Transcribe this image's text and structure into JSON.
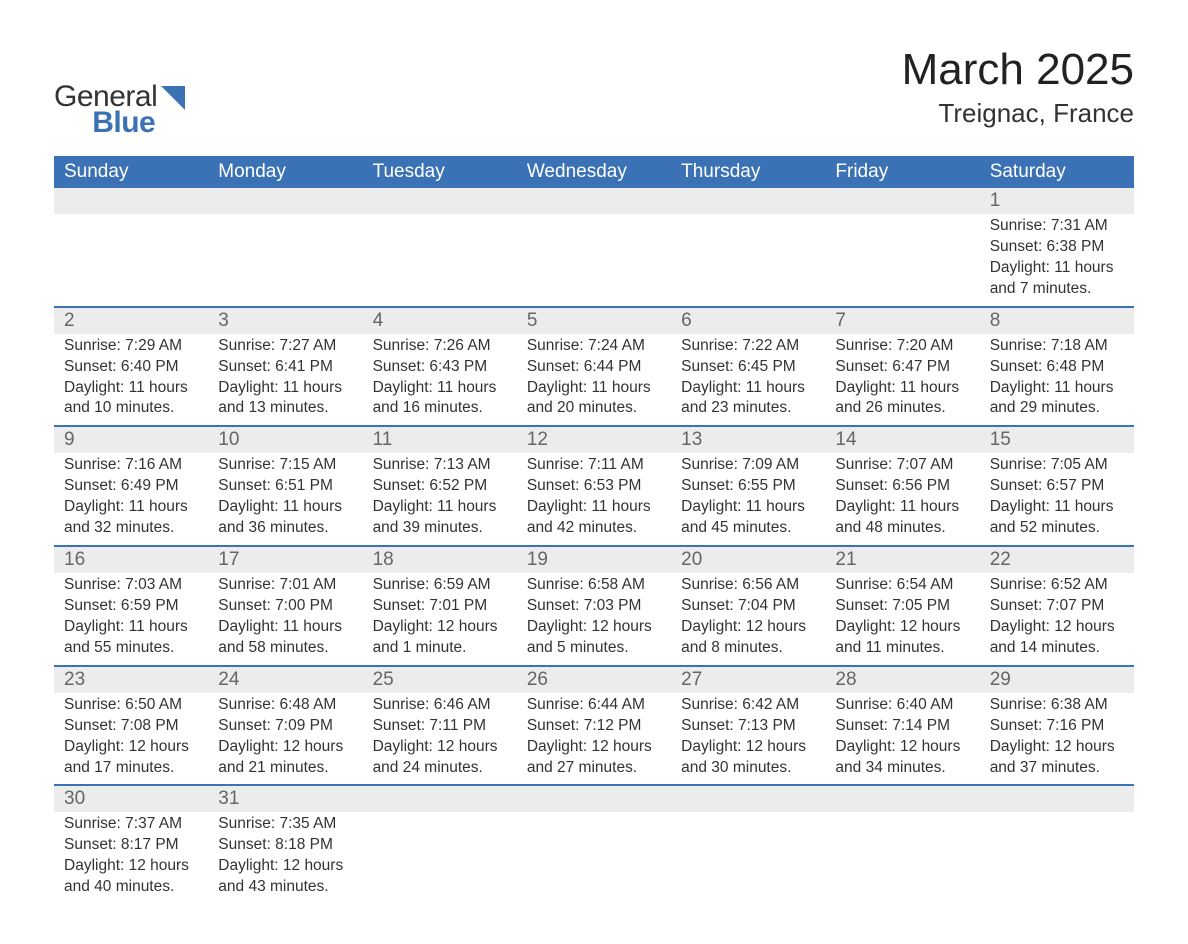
{
  "brand": {
    "word1": "General",
    "word2": "Blue",
    "logo_color": "#3a72b5"
  },
  "title": "March 2025",
  "location": "Treignac, France",
  "colors": {
    "header_bg": "#3a72b5",
    "header_fg": "#ffffff",
    "daynum_bg": "#ececec",
    "row_divider": "#3a72b5",
    "page_bg": "#ffffff",
    "text": "#333333"
  },
  "typography": {
    "title_fontsize": 44,
    "location_fontsize": 26,
    "header_fontsize": 19,
    "daynum_fontsize": 19,
    "body_fontsize": 15.5
  },
  "weekdays": [
    "Sunday",
    "Monday",
    "Tuesday",
    "Wednesday",
    "Thursday",
    "Friday",
    "Saturday"
  ],
  "weeks": [
    [
      null,
      null,
      null,
      null,
      null,
      null,
      {
        "n": "1",
        "sunrise": "7:31 AM",
        "sunset": "6:38 PM",
        "day": "11 hours and 7 minutes."
      }
    ],
    [
      {
        "n": "2",
        "sunrise": "7:29 AM",
        "sunset": "6:40 PM",
        "day": "11 hours and 10 minutes."
      },
      {
        "n": "3",
        "sunrise": "7:27 AM",
        "sunset": "6:41 PM",
        "day": "11 hours and 13 minutes."
      },
      {
        "n": "4",
        "sunrise": "7:26 AM",
        "sunset": "6:43 PM",
        "day": "11 hours and 16 minutes."
      },
      {
        "n": "5",
        "sunrise": "7:24 AM",
        "sunset": "6:44 PM",
        "day": "11 hours and 20 minutes."
      },
      {
        "n": "6",
        "sunrise": "7:22 AM",
        "sunset": "6:45 PM",
        "day": "11 hours and 23 minutes."
      },
      {
        "n": "7",
        "sunrise": "7:20 AM",
        "sunset": "6:47 PM",
        "day": "11 hours and 26 minutes."
      },
      {
        "n": "8",
        "sunrise": "7:18 AM",
        "sunset": "6:48 PM",
        "day": "11 hours and 29 minutes."
      }
    ],
    [
      {
        "n": "9",
        "sunrise": "7:16 AM",
        "sunset": "6:49 PM",
        "day": "11 hours and 32 minutes."
      },
      {
        "n": "10",
        "sunrise": "7:15 AM",
        "sunset": "6:51 PM",
        "day": "11 hours and 36 minutes."
      },
      {
        "n": "11",
        "sunrise": "7:13 AM",
        "sunset": "6:52 PM",
        "day": "11 hours and 39 minutes."
      },
      {
        "n": "12",
        "sunrise": "7:11 AM",
        "sunset": "6:53 PM",
        "day": "11 hours and 42 minutes."
      },
      {
        "n": "13",
        "sunrise": "7:09 AM",
        "sunset": "6:55 PM",
        "day": "11 hours and 45 minutes."
      },
      {
        "n": "14",
        "sunrise": "7:07 AM",
        "sunset": "6:56 PM",
        "day": "11 hours and 48 minutes."
      },
      {
        "n": "15",
        "sunrise": "7:05 AM",
        "sunset": "6:57 PM",
        "day": "11 hours and 52 minutes."
      }
    ],
    [
      {
        "n": "16",
        "sunrise": "7:03 AM",
        "sunset": "6:59 PM",
        "day": "11 hours and 55 minutes."
      },
      {
        "n": "17",
        "sunrise": "7:01 AM",
        "sunset": "7:00 PM",
        "day": "11 hours and 58 minutes."
      },
      {
        "n": "18",
        "sunrise": "6:59 AM",
        "sunset": "7:01 PM",
        "day": "12 hours and 1 minute."
      },
      {
        "n": "19",
        "sunrise": "6:58 AM",
        "sunset": "7:03 PM",
        "day": "12 hours and 5 minutes."
      },
      {
        "n": "20",
        "sunrise": "6:56 AM",
        "sunset": "7:04 PM",
        "day": "12 hours and 8 minutes."
      },
      {
        "n": "21",
        "sunrise": "6:54 AM",
        "sunset": "7:05 PM",
        "day": "12 hours and 11 minutes."
      },
      {
        "n": "22",
        "sunrise": "6:52 AM",
        "sunset": "7:07 PM",
        "day": "12 hours and 14 minutes."
      }
    ],
    [
      {
        "n": "23",
        "sunrise": "6:50 AM",
        "sunset": "7:08 PM",
        "day": "12 hours and 17 minutes."
      },
      {
        "n": "24",
        "sunrise": "6:48 AM",
        "sunset": "7:09 PM",
        "day": "12 hours and 21 minutes."
      },
      {
        "n": "25",
        "sunrise": "6:46 AM",
        "sunset": "7:11 PM",
        "day": "12 hours and 24 minutes."
      },
      {
        "n": "26",
        "sunrise": "6:44 AM",
        "sunset": "7:12 PM",
        "day": "12 hours and 27 minutes."
      },
      {
        "n": "27",
        "sunrise": "6:42 AM",
        "sunset": "7:13 PM",
        "day": "12 hours and 30 minutes."
      },
      {
        "n": "28",
        "sunrise": "6:40 AM",
        "sunset": "7:14 PM",
        "day": "12 hours and 34 minutes."
      },
      {
        "n": "29",
        "sunrise": "6:38 AM",
        "sunset": "7:16 PM",
        "day": "12 hours and 37 minutes."
      }
    ],
    [
      {
        "n": "30",
        "sunrise": "7:37 AM",
        "sunset": "8:17 PM",
        "day": "12 hours and 40 minutes."
      },
      {
        "n": "31",
        "sunrise": "7:35 AM",
        "sunset": "8:18 PM",
        "day": "12 hours and 43 minutes."
      },
      null,
      null,
      null,
      null,
      null
    ]
  ],
  "labels": {
    "sunrise": "Sunrise: ",
    "sunset": "Sunset: ",
    "daylight": "Daylight: "
  }
}
